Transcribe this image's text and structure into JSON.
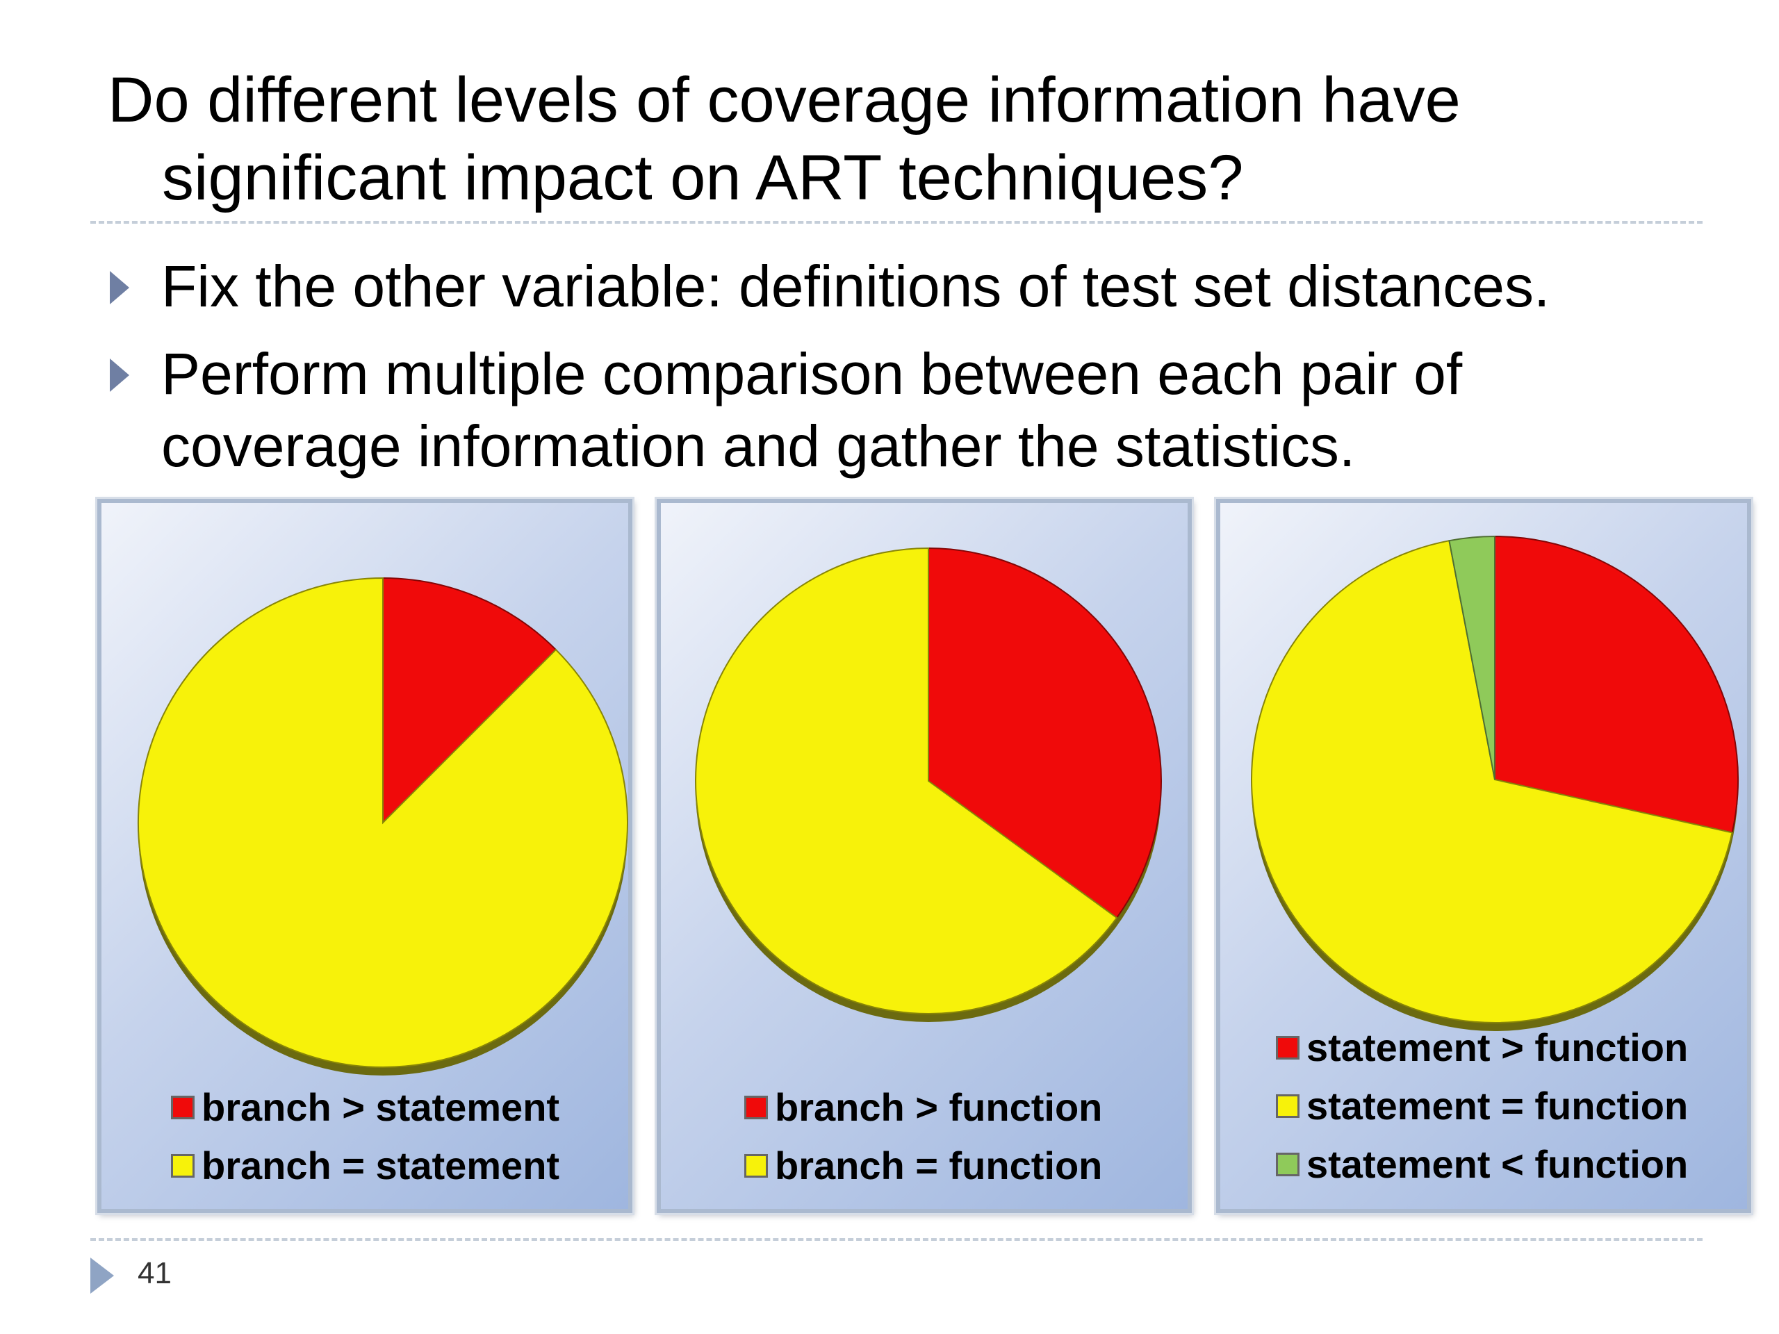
{
  "title": {
    "line1": "Do different levels of coverage information have",
    "line2": "significant impact on ART techniques?"
  },
  "bullets": [
    "Fix the other variable: definitions of test set distances.",
    "Perform multiple comparison between each pair of coverage information and gather the statistics."
  ],
  "page_number": "41",
  "colors": {
    "red": "#f00a0a",
    "yellow": "#f7f20a",
    "green": "#8fca5a"
  },
  "chart_data": [
    {
      "type": "pie",
      "values": [
        12.5,
        87.5
      ],
      "labels": [
        "branch > statement",
        "branch = statement"
      ],
      "colors": [
        "#f00a0a",
        "#f7f20a"
      ],
      "start_angle_deg": 0,
      "legend": "bottom"
    },
    {
      "type": "pie",
      "values": [
        35,
        65
      ],
      "labels": [
        "branch > function",
        "branch = function"
      ],
      "colors": [
        "#f00a0a",
        "#f7f20a"
      ],
      "start_angle_deg": 0,
      "legend": "bottom"
    },
    {
      "type": "pie",
      "values": [
        28.5,
        68.5,
        3
      ],
      "labels": [
        "statement > function",
        "statement = function",
        "statement < function"
      ],
      "colors": [
        "#f00a0a",
        "#f7f20a",
        "#8fca5a"
      ],
      "start_angle_deg": 0,
      "legend": "bottom"
    }
  ]
}
